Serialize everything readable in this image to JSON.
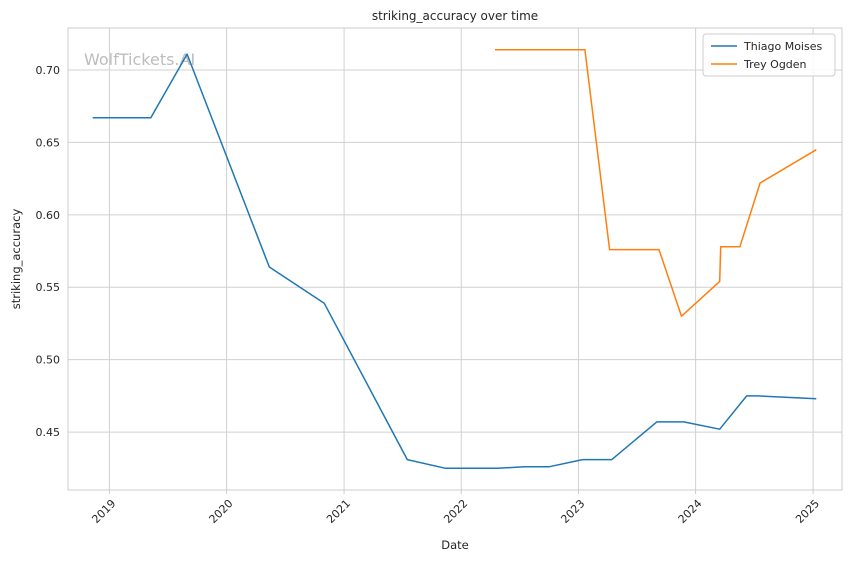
{
  "watermark": "WolfTickets.AI",
  "chart_data": {
    "type": "line",
    "title": "striking_accuracy over time",
    "xlabel": "Date",
    "ylabel": "striking_accuracy",
    "x_tick_labels": [
      "2019",
      "2020",
      "2021",
      "2022",
      "2023",
      "2024",
      "2025"
    ],
    "y_tick_labels": [
      "0.45",
      "0.50",
      "0.55",
      "0.60",
      "0.65",
      "0.70"
    ],
    "y_ticks": [
      0.45,
      0.5,
      0.55,
      0.6,
      0.65,
      0.7
    ],
    "xlim": [
      "2018-08-25",
      "2025-04-01"
    ],
    "ylim": [
      0.41,
      0.729
    ],
    "grid": true,
    "legend_position": "top-right",
    "series": [
      {
        "name": "Thiago Moises",
        "color": "#1f77b4",
        "points": [
          [
            "2018-11-10",
            0.667
          ],
          [
            "2019-05-10",
            0.667
          ],
          [
            "2019-08-31",
            0.711
          ],
          [
            "2020-05-13",
            0.564
          ],
          [
            "2020-10-31",
            0.539
          ],
          [
            "2021-07-17",
            0.431
          ],
          [
            "2021-11-13",
            0.425
          ],
          [
            "2022-04-23",
            0.425
          ],
          [
            "2022-07-16",
            0.426
          ],
          [
            "2022-10-01",
            0.426
          ],
          [
            "2023-01-14",
            0.431
          ],
          [
            "2023-04-15",
            0.431
          ],
          [
            "2023-09-02",
            0.457
          ],
          [
            "2023-11-25",
            0.457
          ],
          [
            "2024-03-16",
            0.452
          ],
          [
            "2024-06-08",
            0.475
          ],
          [
            "2024-07-13",
            0.475
          ],
          [
            "2025-01-11",
            0.473
          ]
        ]
      },
      {
        "name": "Trey Ogden",
        "color": "#ff7f0e",
        "points": [
          [
            "2022-04-16",
            0.714
          ],
          [
            "2023-01-21",
            0.714
          ],
          [
            "2023-04-08",
            0.576
          ],
          [
            "2023-09-09",
            0.576
          ],
          [
            "2023-11-18",
            0.53
          ],
          [
            "2024-03-16",
            0.554
          ],
          [
            "2024-03-19",
            0.578
          ],
          [
            "2024-05-18",
            0.578
          ],
          [
            "2024-07-20",
            0.622
          ],
          [
            "2025-01-11",
            0.645
          ]
        ]
      }
    ]
  }
}
